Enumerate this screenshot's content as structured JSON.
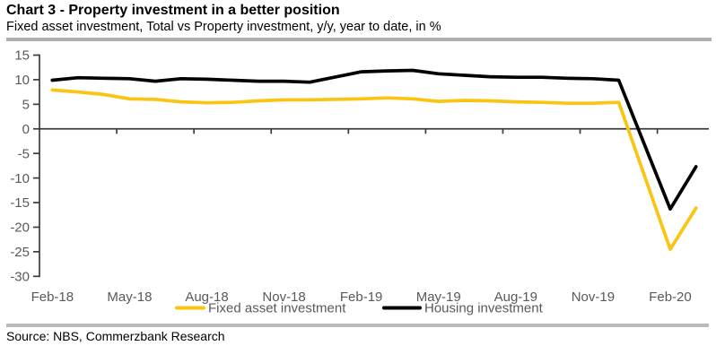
{
  "header": {
    "title": "Chart 3 - Property investment in a better position",
    "subtitle": "Fixed asset investment, Total vs Property investment, y/y, year to date, in %"
  },
  "footer": {
    "source": "Source: NBS, Commerzbank Research"
  },
  "colors": {
    "fixed_asset_line": "#FBC412",
    "housing_line": "#000000",
    "axis": "#3c3c3c",
    "tick_label": "#595959",
    "separator": "#aeaeae"
  },
  "chart_data": {
    "type": "line",
    "title": "Chart 3 - Property investment in a better position",
    "subtitle": "Fixed asset investment, Total vs Property investment, y/y, year to date, in %",
    "xlabel": "",
    "ylabel": "y/y, year to date, in %",
    "ylim": [
      -30,
      15
    ],
    "y_ticks": [
      15,
      10,
      5,
      0,
      -5,
      -10,
      -15,
      -20,
      -25,
      -30
    ],
    "grid": false,
    "legend_position": "bottom-center",
    "categories": [
      "Feb-18",
      "Mar-18",
      "Apr-18",
      "May-18",
      "Jun-18",
      "Jul-18",
      "Aug-18",
      "Sep-18",
      "Oct-18",
      "Nov-18",
      "Dec-18",
      "Jan-19",
      "Feb-19",
      "Mar-19",
      "Apr-19",
      "May-19",
      "Jun-19",
      "Jul-19",
      "Aug-19",
      "Sep-19",
      "Oct-19",
      "Nov-19",
      "Dec-19",
      "Jan-20",
      "Feb-20",
      "Mar-20"
    ],
    "x_tick_labels": [
      "Feb-18",
      "May-18",
      "Aug-18",
      "Nov-18",
      "Feb-19",
      "May-19",
      "Aug-19",
      "Nov-19",
      "Feb-20"
    ],
    "x_label_every": 3,
    "series": [
      {
        "name": "Fixed asset investment",
        "color": "#FBC412",
        "values": [
          7.9,
          7.5,
          7.0,
          6.1,
          6.0,
          5.5,
          5.3,
          5.4,
          5.7,
          5.9,
          5.9,
          null,
          6.1,
          6.3,
          6.1,
          5.6,
          5.8,
          5.7,
          5.5,
          5.4,
          5.2,
          5.2,
          5.4,
          null,
          -24.5,
          -16.1
        ]
      },
      {
        "name": "Housing investment",
        "color": "#000000",
        "values": [
          9.9,
          10.4,
          10.3,
          10.2,
          9.7,
          10.2,
          10.1,
          9.9,
          9.7,
          9.7,
          9.5,
          null,
          11.6,
          11.8,
          11.9,
          11.2,
          10.9,
          10.6,
          10.5,
          10.5,
          10.3,
          10.2,
          9.9,
          null,
          -16.3,
          -7.7
        ]
      }
    ]
  }
}
